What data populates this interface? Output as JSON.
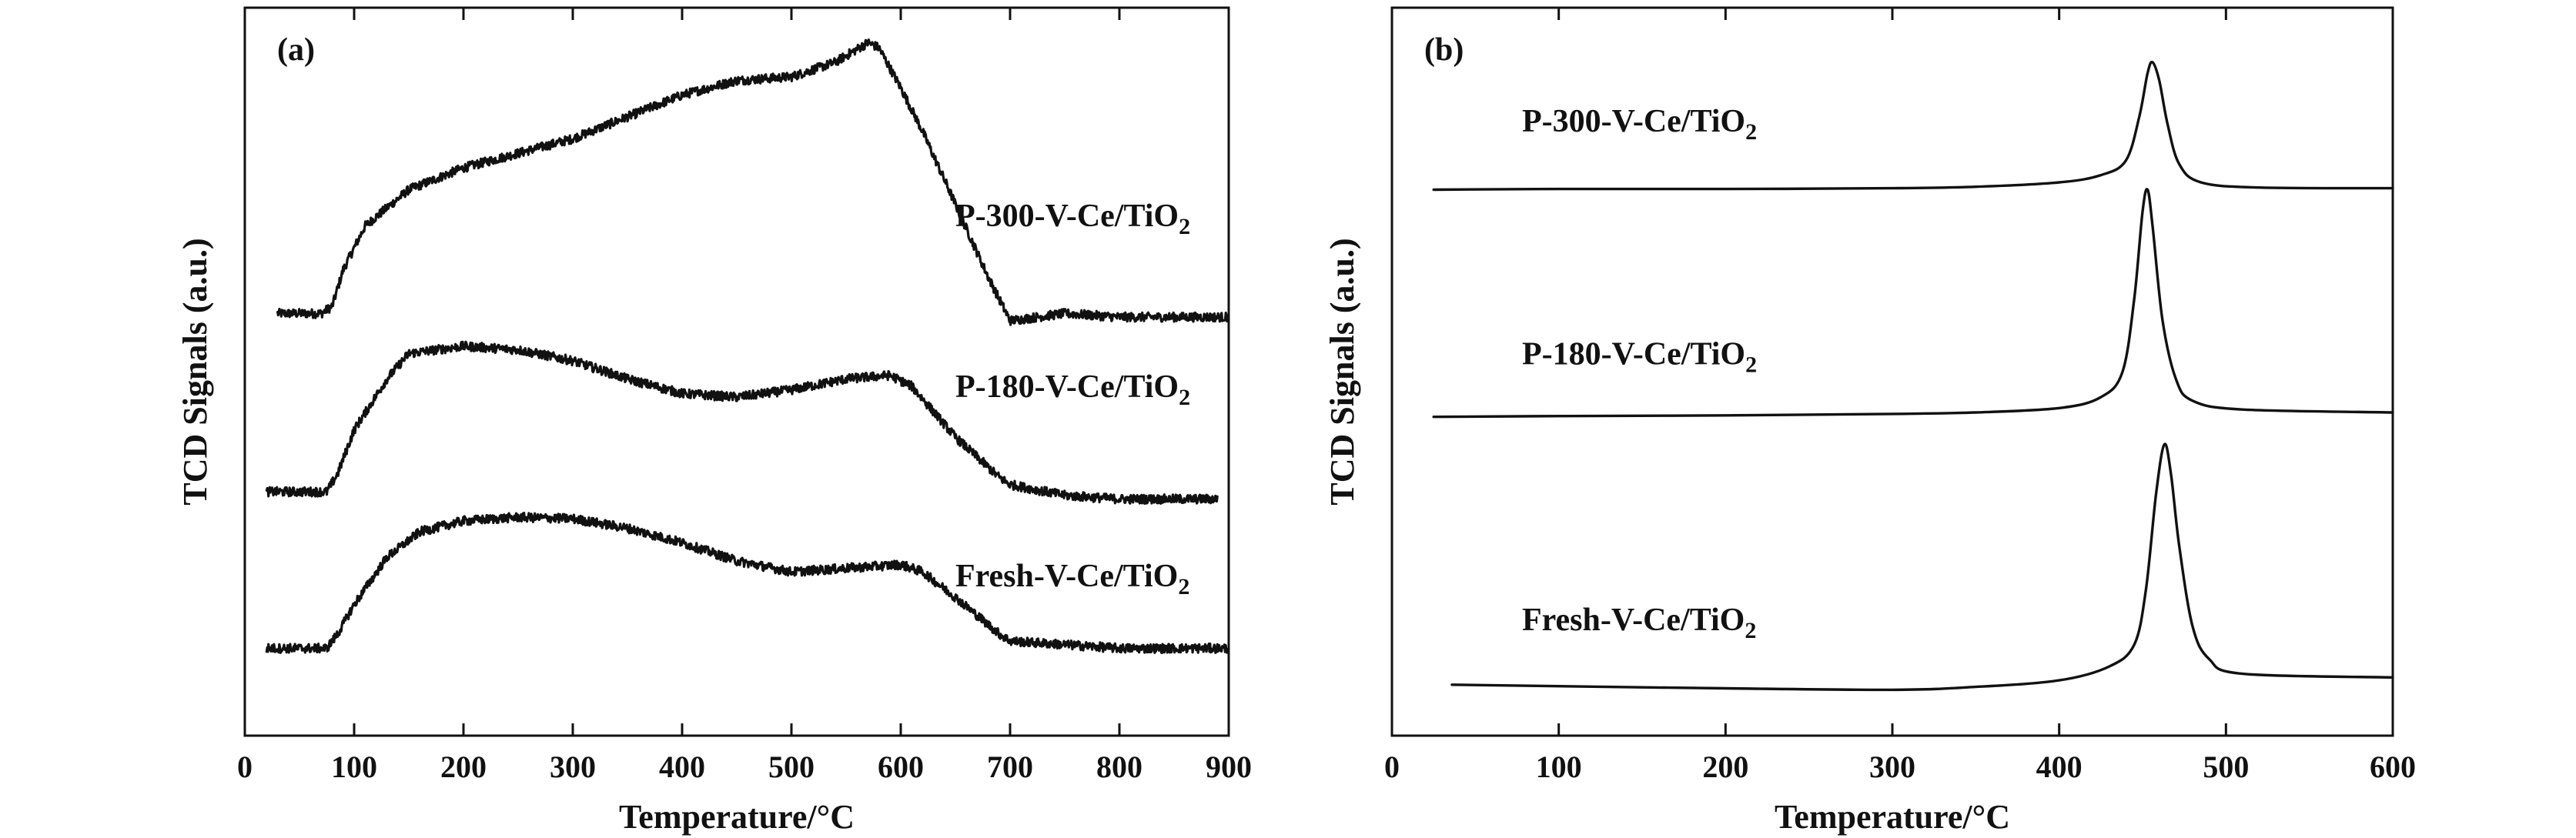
{
  "chart_data": [
    {
      "type": "line",
      "panel_label": "(a)",
      "xlabel": "Temperature/°C",
      "ylabel": "TCD Signals (a.u.)",
      "xlim": [
        0,
        900
      ],
      "x_ticks": [
        0,
        100,
        200,
        300,
        400,
        500,
        600,
        700,
        800,
        900
      ],
      "y_ticks": [],
      "ylim": [
        0,
        100
      ],
      "noisy": true,
      "series": [
        {
          "name": "P-300-V-Ce/TiO",
          "name_sub": "2",
          "label_at": {
            "x": 650,
            "y": 70
          },
          "points": [
            [
              30,
              58
            ],
            [
              70,
              58
            ],
            [
              80,
              59
            ],
            [
              90,
              64
            ],
            [
              110,
              70
            ],
            [
              150,
              75
            ],
            [
              200,
              78
            ],
            [
              250,
              80
            ],
            [
              300,
              82
            ],
            [
              350,
              85
            ],
            [
              400,
              88
            ],
            [
              450,
              90
            ],
            [
              500,
              90.5
            ],
            [
              540,
              92.5
            ],
            [
              570,
              95.2
            ],
            [
              580,
              94.5
            ],
            [
              600,
              89
            ],
            [
              620,
              83
            ],
            [
              650,
              73
            ],
            [
              680,
              63
            ],
            [
              700,
              57
            ],
            [
              750,
              58
            ],
            [
              800,
              57.5
            ],
            [
              850,
              57.5
            ],
            [
              900,
              57.5
            ]
          ]
        },
        {
          "name": "P-180-V-Ce/TiO",
          "name_sub": "2",
          "label_at": {
            "x": 650,
            "y": 46.5
          },
          "points": [
            [
              20,
              33.5
            ],
            [
              75,
              33.5
            ],
            [
              85,
              36
            ],
            [
              100,
              42
            ],
            [
              130,
              49
            ],
            [
              150,
              52.5
            ],
            [
              200,
              53.5
            ],
            [
              250,
              53
            ],
            [
              300,
              51.5
            ],
            [
              350,
              49
            ],
            [
              400,
              47
            ],
            [
              450,
              46.5
            ],
            [
              500,
              47.5
            ],
            [
              550,
              49
            ],
            [
              590,
              49.5
            ],
            [
              610,
              48
            ],
            [
              650,
              41
            ],
            [
              690,
              35.5
            ],
            [
              700,
              34.5
            ],
            [
              750,
              33
            ],
            [
              800,
              32.5
            ],
            [
              850,
              32.5
            ],
            [
              890,
              32.5
            ]
          ]
        },
        {
          "name": "Fresh-V-Ce/TiO",
          "name_sub": "2",
          "label_at": {
            "x": 650,
            "y": 20.5
          },
          "points": [
            [
              20,
              12
            ],
            [
              75,
              12
            ],
            [
              85,
              14
            ],
            [
              100,
              18
            ],
            [
              130,
              24.5
            ],
            [
              160,
              28
            ],
            [
              200,
              29.5
            ],
            [
              250,
              30
            ],
            [
              300,
              29.8
            ],
            [
              350,
              28.5
            ],
            [
              400,
              26.5
            ],
            [
              450,
              24
            ],
            [
              500,
              22.5
            ],
            [
              550,
              23
            ],
            [
              600,
              23.5
            ],
            [
              620,
              22.5
            ],
            [
              650,
              19
            ],
            [
              690,
              14
            ],
            [
              700,
              13
            ],
            [
              750,
              12.5
            ],
            [
              800,
              12
            ],
            [
              850,
              12
            ],
            [
              900,
              12
            ]
          ]
        }
      ]
    },
    {
      "type": "line",
      "panel_label": "(b)",
      "xlabel": "Temperature/°C",
      "ylabel": "TCD Signals (a.u.)",
      "xlim": [
        0,
        600
      ],
      "x_ticks": [
        0,
        100,
        200,
        300,
        400,
        500,
        600
      ],
      "y_ticks": [],
      "ylim": [
        0,
        100
      ],
      "noisy": false,
      "series": [
        {
          "name": "P-300-V-Ce/TiO",
          "name_sub": "2",
          "label_at": {
            "x": 78,
            "y": 83
          },
          "points": [
            [
              25,
              75
            ],
            [
              100,
              75.1
            ],
            [
              200,
              75.1
            ],
            [
              300,
              75.2
            ],
            [
              350,
              75.4
            ],
            [
              400,
              76
            ],
            [
              425,
              77
            ],
            [
              440,
              79
            ],
            [
              448,
              85
            ],
            [
              453,
              91
            ],
            [
              456,
              92.5
            ],
            [
              460,
              90
            ],
            [
              465,
              84
            ],
            [
              472,
              78.5
            ],
            [
              485,
              76
            ],
            [
              520,
              75.3
            ],
            [
              600,
              75.2
            ]
          ]
        },
        {
          "name": "P-180-V-Ce/TiO",
          "name_sub": "2",
          "label_at": {
            "x": 78,
            "y": 51
          },
          "points": [
            [
              25,
              43.8
            ],
            [
              100,
              43.9
            ],
            [
              200,
              44
            ],
            [
              300,
              44.2
            ],
            [
              350,
              44.4
            ],
            [
              400,
              45
            ],
            [
              425,
              46.5
            ],
            [
              438,
              50
            ],
            [
              445,
              60
            ],
            [
              450,
              72
            ],
            [
              453,
              75
            ],
            [
              456,
              70
            ],
            [
              462,
              57
            ],
            [
              470,
              49
            ],
            [
              480,
              46
            ],
            [
              510,
              44.8
            ],
            [
              600,
              44.4
            ]
          ]
        },
        {
          "name": "Fresh-V-Ce/TiO",
          "name_sub": "2",
          "label_at": {
            "x": 78,
            "y": 14.5
          },
          "points": [
            [
              36,
              7
            ],
            [
              100,
              6.8
            ],
            [
              200,
              6.5
            ],
            [
              300,
              6.3
            ],
            [
              350,
              6.7
            ],
            [
              400,
              7.6
            ],
            [
              430,
              9.5
            ],
            [
              445,
              12.5
            ],
            [
              452,
              20
            ],
            [
              458,
              33
            ],
            [
              463,
              40
            ],
            [
              467,
              36
            ],
            [
              472,
              26
            ],
            [
              480,
              15
            ],
            [
              490,
              10.5
            ],
            [
              510,
              8.5
            ],
            [
              600,
              8
            ]
          ]
        }
      ]
    }
  ]
}
